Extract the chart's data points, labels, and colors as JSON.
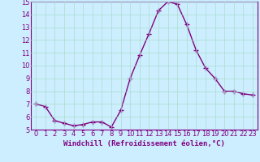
{
  "x": [
    0,
    1,
    2,
    3,
    4,
    5,
    6,
    7,
    8,
    9,
    10,
    11,
    12,
    13,
    14,
    15,
    16,
    17,
    18,
    19,
    20,
    21,
    22,
    23
  ],
  "y": [
    7.0,
    6.8,
    5.7,
    5.5,
    5.3,
    5.4,
    5.6,
    5.6,
    5.2,
    6.5,
    9.0,
    10.8,
    12.5,
    14.3,
    15.0,
    14.8,
    13.2,
    11.2,
    9.8,
    9.0,
    8.0,
    8.0,
    7.8,
    7.7
  ],
  "line_color": "#800080",
  "marker": "+",
  "marker_size": 4,
  "bg_color": "#cceeff",
  "grid_color": "#aaddcc",
  "xlabel": "Windchill (Refroidissement éolien,°C)",
  "ylim": [
    5,
    15
  ],
  "xlim": [
    -0.5,
    23.5
  ],
  "yticks": [
    5,
    6,
    7,
    8,
    9,
    10,
    11,
    12,
    13,
    14,
    15
  ],
  "xticks": [
    0,
    1,
    2,
    3,
    4,
    5,
    6,
    7,
    8,
    9,
    10,
    11,
    12,
    13,
    14,
    15,
    16,
    17,
    18,
    19,
    20,
    21,
    22,
    23
  ],
  "tick_label_color": "#800080",
  "label_fontsize": 6.5,
  "tick_fontsize": 6,
  "spine_color": "#800080",
  "linewidth": 1.0
}
